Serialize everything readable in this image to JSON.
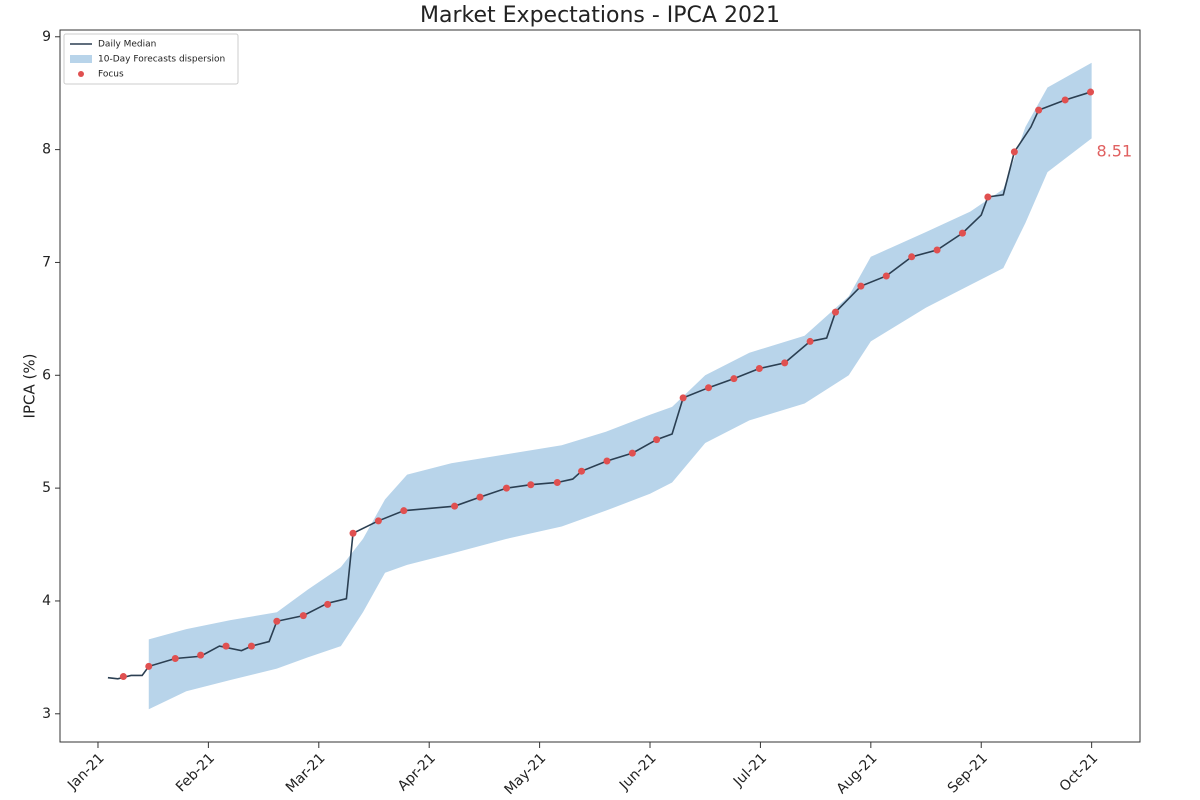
{
  "chart_data": {
    "type": "line",
    "title": "Market Expectations - IPCA 2021",
    "ylabel": "IPCA (%)",
    "xlim": [
      -0.344,
      9.438
    ],
    "ylim": [
      2.75,
      9.06
    ],
    "xticks": [
      {
        "value": 0,
        "label": "Jan-21"
      },
      {
        "value": 1,
        "label": "Feb-21"
      },
      {
        "value": 2,
        "label": "Mar-21"
      },
      {
        "value": 3,
        "label": "Apr-21"
      },
      {
        "value": 4,
        "label": "May-21"
      },
      {
        "value": 5,
        "label": "Jun-21"
      },
      {
        "value": 6,
        "label": "Jul-21"
      },
      {
        "value": 7,
        "label": "Aug-21"
      },
      {
        "value": 8,
        "label": "Sep-21"
      },
      {
        "value": 9,
        "label": "Oct-21"
      }
    ],
    "yticks": [
      3,
      4,
      5,
      6,
      7,
      8,
      9
    ],
    "legend": "upper left",
    "annotation": "8.51",
    "annotation_color": "#e06060",
    "series": [
      {
        "name": "Daily Median",
        "type": "line",
        "color": "#2b3f52",
        "x": [
          0.09,
          0.18,
          0.3,
          0.4,
          0.46,
          0.7,
          0.93,
          1.1,
          1.3,
          1.39,
          1.55,
          1.62,
          1.86,
          2.08,
          2.25,
          2.31,
          2.54,
          2.77,
          3.0,
          3.23,
          3.46,
          3.7,
          3.92,
          4.16,
          4.3,
          4.38,
          4.61,
          4.84,
          5.06,
          5.2,
          5.3,
          5.53,
          5.76,
          5.99,
          6.22,
          6.45,
          6.6,
          6.68,
          6.91,
          7.14,
          7.37,
          7.6,
          7.83,
          8.0,
          8.06,
          8.2,
          8.3,
          8.45,
          8.52,
          8.76,
          8.99
        ],
        "values": [
          3.32,
          3.31,
          3.34,
          3.34,
          3.42,
          3.49,
          3.51,
          3.6,
          3.56,
          3.6,
          3.64,
          3.82,
          3.87,
          3.98,
          4.02,
          4.6,
          4.71,
          4.8,
          4.82,
          4.84,
          4.92,
          5.0,
          5.03,
          5.05,
          5.08,
          5.15,
          5.24,
          5.31,
          5.43,
          5.48,
          5.8,
          5.89,
          5.97,
          6.06,
          6.11,
          6.3,
          6.33,
          6.56,
          6.79,
          6.88,
          7.05,
          7.11,
          7.26,
          7.42,
          7.58,
          7.6,
          7.98,
          8.2,
          8.35,
          8.44,
          8.51
        ]
      },
      {
        "name": "10-Day Forecasts dispersion",
        "type": "band",
        "color": "#b8d4ea",
        "x": [
          0.46,
          0.8,
          1.2,
          1.62,
          1.9,
          2.2,
          2.4,
          2.6,
          2.8,
          3.2,
          3.7,
          4.2,
          4.6,
          5.0,
          5.2,
          5.5,
          5.9,
          6.4,
          6.8,
          7.0,
          7.5,
          7.9,
          8.2,
          8.4,
          8.6,
          9.0
        ],
        "low": [
          3.04,
          3.2,
          3.3,
          3.4,
          3.5,
          3.6,
          3.9,
          4.25,
          4.32,
          4.42,
          4.55,
          4.66,
          4.8,
          4.95,
          5.05,
          5.4,
          5.6,
          5.75,
          6.0,
          6.3,
          6.6,
          6.8,
          6.95,
          7.35,
          7.8,
          8.1
        ],
        "high": [
          3.66,
          3.75,
          3.83,
          3.9,
          4.1,
          4.3,
          4.55,
          4.9,
          5.12,
          5.22,
          5.3,
          5.38,
          5.5,
          5.65,
          5.72,
          6.0,
          6.2,
          6.35,
          6.7,
          7.05,
          7.27,
          7.45,
          7.65,
          8.2,
          8.55,
          8.77
        ]
      },
      {
        "name": "Focus",
        "type": "scatter",
        "color": "#e05050",
        "x": [
          0.23,
          0.46,
          0.7,
          0.93,
          1.16,
          1.39,
          1.62,
          1.86,
          2.08,
          2.31,
          2.54,
          2.77,
          3.23,
          3.46,
          3.7,
          3.92,
          4.16,
          4.38,
          4.61,
          4.84,
          5.06,
          5.3,
          5.53,
          5.76,
          5.99,
          6.22,
          6.45,
          6.68,
          6.91,
          7.14,
          7.37,
          7.6,
          7.83,
          8.06,
          8.3,
          8.52,
          8.76,
          8.99
        ],
        "values": [
          3.33,
          3.42,
          3.49,
          3.52,
          3.6,
          3.6,
          3.82,
          3.87,
          3.97,
          4.6,
          4.71,
          4.8,
          4.84,
          4.92,
          5.0,
          5.03,
          5.05,
          5.15,
          5.24,
          5.31,
          5.43,
          5.8,
          5.89,
          5.97,
          6.06,
          6.11,
          6.3,
          6.56,
          6.79,
          6.88,
          7.05,
          7.11,
          7.26,
          7.58,
          7.98,
          8.35,
          8.44,
          8.51
        ]
      }
    ]
  }
}
